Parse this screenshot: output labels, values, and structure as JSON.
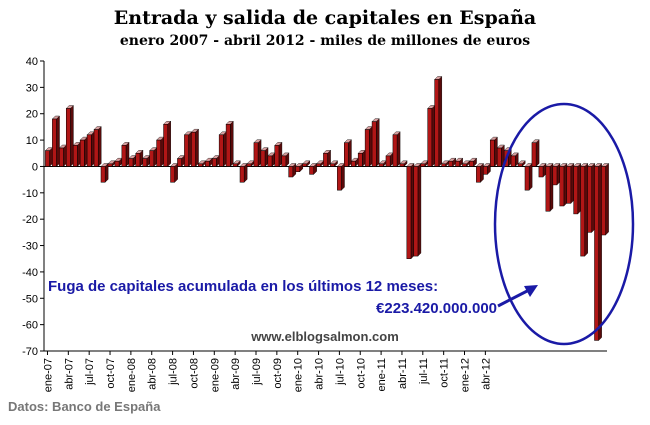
{
  "title": "Entrada y salida de capitales en España",
  "subtitle": "enero 2007 - abril 2012 - miles de millones de euros",
  "annotation": {
    "line1": "Fuga de capitales acumulada en los últimos 12 meses:",
    "line2": "€223.420.000.000"
  },
  "watermark": "www.elblogsalmon.com",
  "source": "Datos: Banco de España",
  "colors": {
    "bar_front": "#b11616",
    "bar_top": "#d9a0a0",
    "bar_side": "#5a0a0a",
    "annotation": "#1a1aa6",
    "ellipse": "#1a1aa6"
  },
  "chart_data": {
    "type": "bar",
    "ylim": [
      -70,
      40
    ],
    "yticks": [
      40,
      30,
      20,
      10,
      0,
      -10,
      -20,
      -30,
      -40,
      -50,
      -60,
      -70
    ],
    "xtick_labels": [
      "ene-07",
      "abr-07",
      "jul-07",
      "oct-07",
      "ene-08",
      "abr-08",
      "jul-08",
      "oct-08",
      "ene-09",
      "abr-09",
      "jul-09",
      "oct-09",
      "ene-10",
      "abr-10",
      "jul-10",
      "oct-10",
      "ene-11",
      "abr-11",
      "jul-11",
      "oct-11",
      "ene-12",
      "abr-12"
    ],
    "grid": false,
    "legend": "none",
    "values": [
      6,
      18,
      7,
      22,
      8,
      10,
      12,
      14,
      -6,
      1,
      2,
      8,
      3,
      5,
      3,
      6,
      10,
      16,
      -6,
      3,
      12,
      13,
      1,
      2,
      3,
      12,
      16,
      1,
      -6,
      1,
      9,
      6,
      4,
      8,
      4,
      -4,
      -2,
      1,
      -3,
      1,
      5,
      1,
      -9,
      9,
      2,
      5,
      14,
      17,
      1,
      4,
      12,
      1,
      -35,
      -34,
      1,
      22,
      33,
      1,
      2,
      2,
      1,
      2,
      -6,
      -3,
      10,
      7,
      6,
      4,
      1,
      -9,
      9,
      -4,
      -17,
      -7,
      -15,
      -14,
      -18,
      -34,
      -25,
      -66,
      -26
    ]
  }
}
